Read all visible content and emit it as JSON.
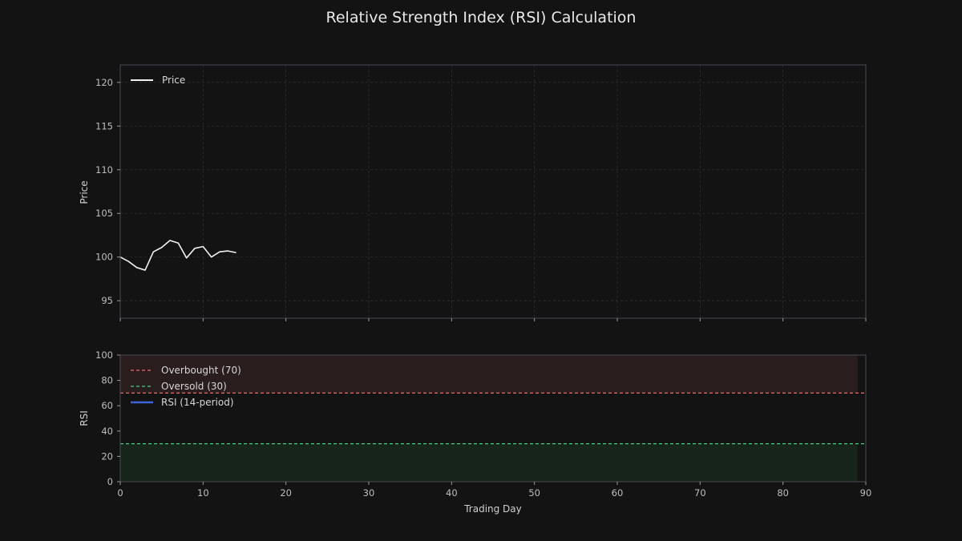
{
  "colors": {
    "background": "#131313",
    "panel_border": "#4a4a55",
    "grid": "#2f2f2f",
    "price_line": "#f0f0f0",
    "overbought": "#ef6b6b",
    "oversold": "#3ecf7f",
    "rsi_line": "#3d63d6",
    "overbought_fill": "#2a1d1d",
    "oversold_fill": "#172419"
  },
  "chart_data": [
    {
      "type": "line",
      "title": "Relative Strength Index (RSI) Calculation",
      "ylabel": "Price",
      "xlim": [
        0,
        90
      ],
      "ylim": [
        93,
        122
      ],
      "yticks": [
        95,
        100,
        105,
        110,
        115,
        120
      ],
      "grid": true,
      "legend_position": "top-left",
      "series": [
        {
          "name": "Price",
          "x": [
            0,
            1,
            2,
            3,
            4,
            5,
            6,
            7,
            8,
            9,
            10,
            11,
            12,
            13,
            14
          ],
          "values": [
            100.0,
            99.5,
            98.8,
            98.5,
            100.6,
            101.1,
            101.9,
            101.6,
            99.9,
            101.0,
            101.2,
            100.0,
            100.6,
            100.7,
            100.5
          ]
        }
      ]
    },
    {
      "type": "line",
      "xlabel": "Trading Day",
      "ylabel": "RSI",
      "xlim": [
        0,
        90
      ],
      "ylim": [
        0,
        100
      ],
      "xticks": [
        0,
        10,
        20,
        30,
        40,
        50,
        60,
        70,
        80,
        90
      ],
      "yticks": [
        0,
        20,
        40,
        60,
        80,
        100
      ],
      "grid": false,
      "legend_position": "top-left",
      "series": [
        {
          "name": "Overbought (70)",
          "style": "dashed",
          "value": 70
        },
        {
          "name": "Oversold (30)",
          "style": "dashed",
          "value": 30
        },
        {
          "name": "RSI (14-period)",
          "style": "solid",
          "x": [],
          "values": []
        }
      ],
      "shaded_regions": [
        {
          "from": 70,
          "to": 100,
          "x_end": 89
        },
        {
          "from": 0,
          "to": 30,
          "x_end": 89
        }
      ]
    }
  ]
}
